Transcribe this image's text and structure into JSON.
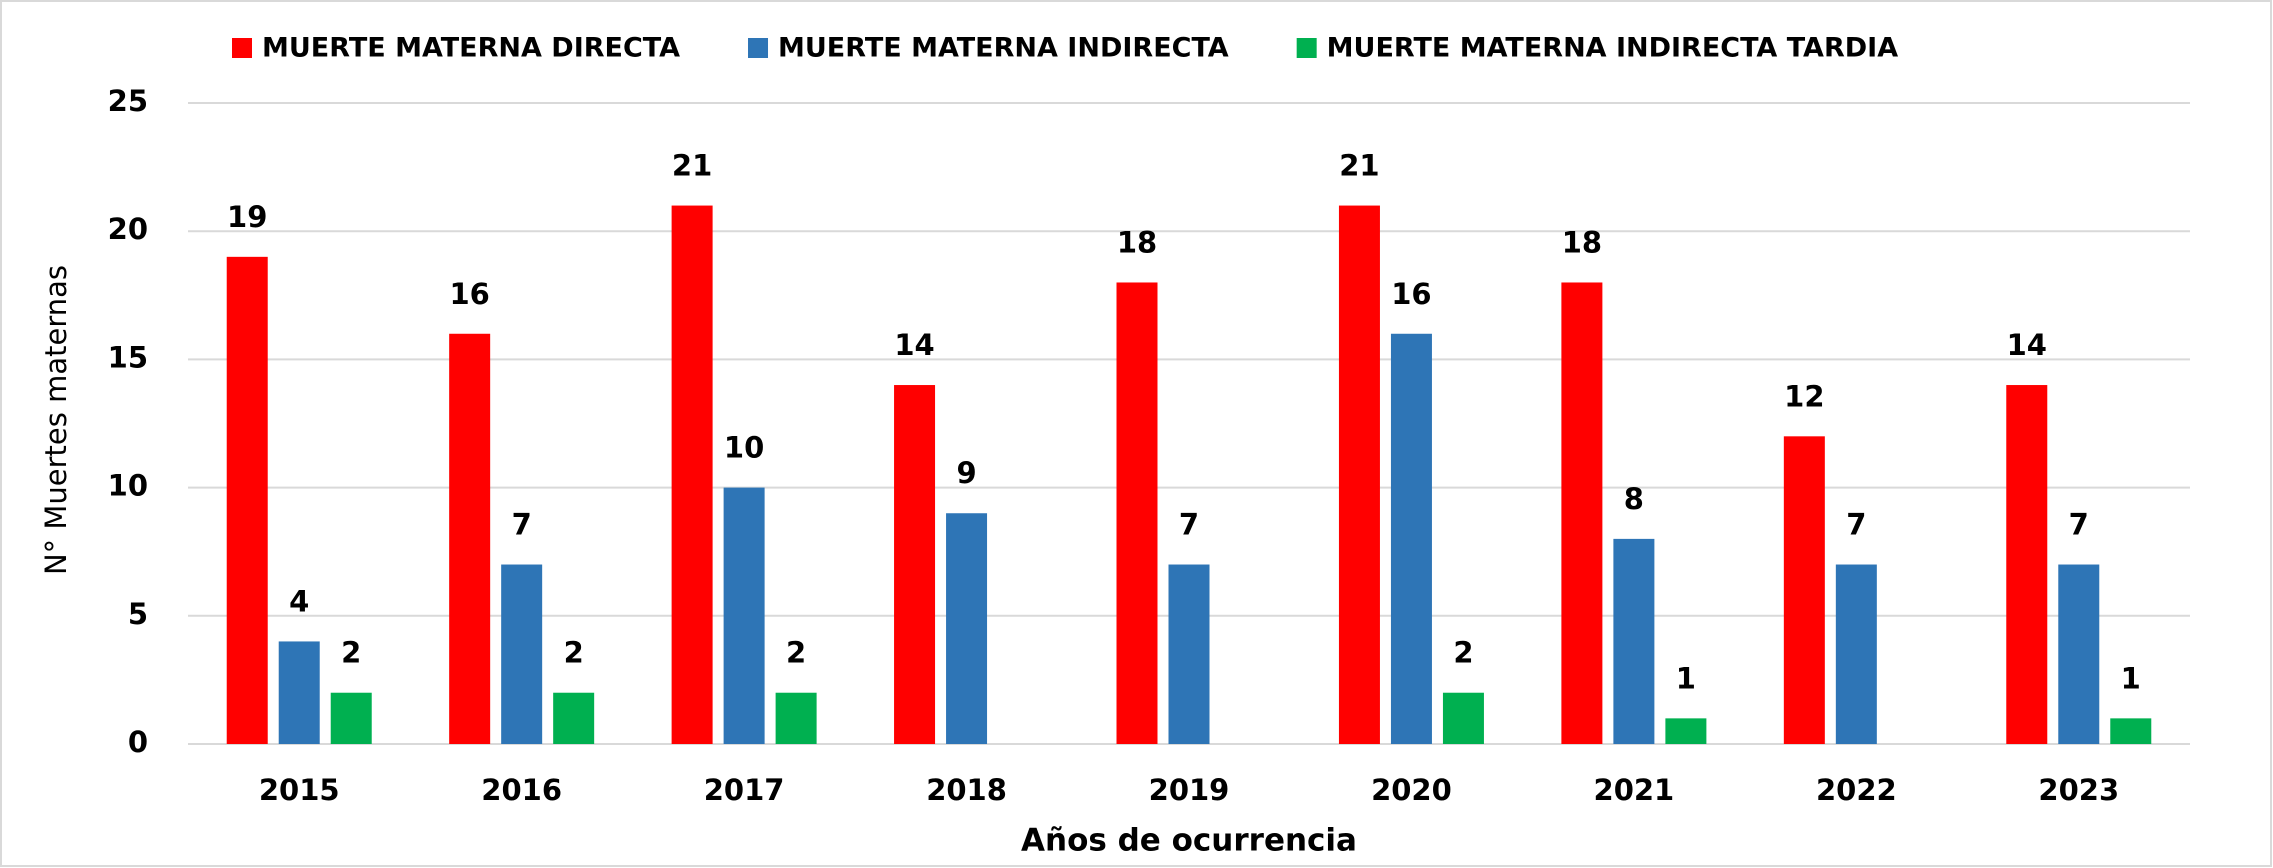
{
  "chart_data": {
    "type": "bar",
    "x_label": "Años de ocurrencia",
    "y_label": "N° Muertes maternas",
    "categories": [
      "2015",
      "2016",
      "2017",
      "2018",
      "2019",
      "2020",
      "2021",
      "2022",
      "2023"
    ],
    "series": [
      {
        "name": "MUERTE MATERNA DIRECTA",
        "color": "#ff0000",
        "values": [
          19,
          16,
          21,
          14,
          18,
          21,
          18,
          12,
          14
        ]
      },
      {
        "name": "MUERTE MATERNA INDIRECTA",
        "color": "#2e75b6",
        "values": [
          4,
          7,
          10,
          9,
          7,
          16,
          8,
          7,
          7
        ]
      },
      {
        "name": "MUERTE MATERNA INDIRECTA TARDIA",
        "color": "#00b050",
        "values": [
          2,
          2,
          2,
          null,
          null,
          2,
          1,
          null,
          1
        ]
      }
    ],
    "ylim": [
      0,
      25
    ],
    "yticks": [
      0,
      5,
      10,
      15,
      20,
      25
    ],
    "grid": true,
    "legend": "top"
  }
}
